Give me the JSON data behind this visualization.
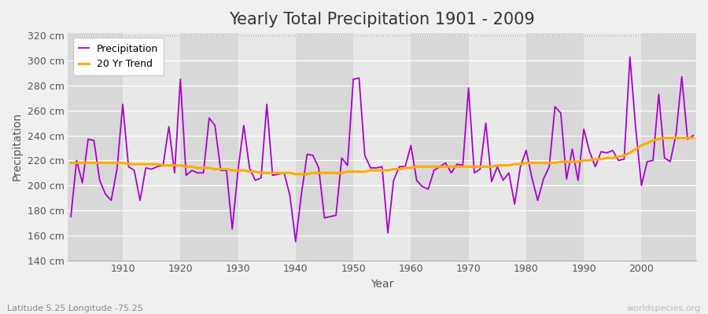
{
  "title": "Yearly Total Precipitation 1901 - 2009",
  "xlabel": "Year",
  "ylabel": "Precipitation",
  "subtitle": "Latitude 5.25 Longitude -75.25",
  "watermark": "worldspecies.org",
  "years": [
    1901,
    1902,
    1903,
    1904,
    1905,
    1906,
    1907,
    1908,
    1909,
    1910,
    1911,
    1912,
    1913,
    1914,
    1915,
    1916,
    1917,
    1918,
    1919,
    1920,
    1921,
    1922,
    1923,
    1924,
    1925,
    1926,
    1927,
    1928,
    1929,
    1930,
    1931,
    1932,
    1933,
    1934,
    1935,
    1936,
    1937,
    1938,
    1939,
    1940,
    1941,
    1942,
    1943,
    1944,
    1945,
    1946,
    1947,
    1948,
    1949,
    1950,
    1951,
    1952,
    1953,
    1954,
    1955,
    1956,
    1957,
    1958,
    1959,
    1960,
    1961,
    1962,
    1963,
    1964,
    1965,
    1966,
    1967,
    1968,
    1969,
    1970,
    1971,
    1972,
    1973,
    1974,
    1975,
    1976,
    1977,
    1978,
    1979,
    1980,
    1981,
    1982,
    1983,
    1984,
    1985,
    1986,
    1987,
    1988,
    1989,
    1990,
    1991,
    1992,
    1993,
    1994,
    1995,
    1996,
    1997,
    1998,
    1999,
    2000,
    2001,
    2002,
    2003,
    2004,
    2005,
    2006,
    2007,
    2008,
    2009
  ],
  "precipitation": [
    175,
    220,
    202,
    237,
    236,
    204,
    193,
    188,
    213,
    265,
    215,
    212,
    188,
    214,
    213,
    215,
    216,
    247,
    210,
    285,
    208,
    212,
    210,
    210,
    254,
    248,
    212,
    212,
    165,
    212,
    248,
    214,
    204,
    206,
    265,
    208,
    209,
    210,
    192,
    155,
    193,
    225,
    224,
    214,
    174,
    175,
    176,
    222,
    216,
    285,
    286,
    224,
    214,
    214,
    215,
    162,
    204,
    215,
    215,
    232,
    204,
    199,
    197,
    212,
    215,
    218,
    210,
    217,
    216,
    278,
    210,
    213,
    250,
    203,
    215,
    204,
    210,
    185,
    215,
    228,
    206,
    188,
    205,
    215,
    263,
    258,
    205,
    229,
    204,
    245,
    227,
    215,
    227,
    226,
    228,
    220,
    221,
    303,
    246,
    200,
    219,
    220,
    273,
    222,
    219,
    241,
    287,
    237,
    240
  ],
  "trend": [
    218,
    218,
    218,
    218,
    218,
    218,
    218,
    218,
    218,
    218,
    217,
    217,
    217,
    217,
    217,
    217,
    216,
    216,
    216,
    216,
    215,
    215,
    214,
    214,
    214,
    213,
    213,
    213,
    212,
    212,
    212,
    211,
    211,
    210,
    210,
    210,
    210,
    210,
    210,
    209,
    209,
    209,
    210,
    210,
    210,
    210,
    210,
    210,
    211,
    211,
    211,
    211,
    212,
    212,
    212,
    212,
    213,
    213,
    214,
    214,
    215,
    215,
    215,
    215,
    215,
    215,
    215,
    215,
    215,
    215,
    215,
    215,
    215,
    215,
    216,
    216,
    216,
    217,
    217,
    218,
    218,
    218,
    218,
    218,
    218,
    219,
    219,
    219,
    219,
    220,
    220,
    221,
    221,
    222,
    222,
    223,
    224,
    226,
    229,
    232,
    234,
    236,
    237,
    238,
    238,
    238,
    238,
    238,
    238
  ],
  "precip_color": "#aa00cc",
  "trend_color": "#ffaa00",
  "bg_color": "#f0f0f0",
  "col_band_light": "#e8e8e8",
  "col_band_dark": "#d8d8d8",
  "ylim": [
    140,
    322
  ],
  "yticks": [
    140,
    160,
    180,
    200,
    220,
    240,
    260,
    280,
    300,
    320
  ],
  "ytick_labels": [
    "140 cm",
    "160 cm",
    "180 cm",
    "200 cm",
    "220 cm",
    "240 cm",
    "260 cm",
    "280 cm",
    "300 cm",
    "320 cm"
  ],
  "xticks": [
    1910,
    1920,
    1930,
    1940,
    1950,
    1960,
    1970,
    1980,
    1990,
    2000
  ],
  "title_fontsize": 15,
  "axis_fontsize": 9,
  "legend_fontsize": 9,
  "linewidth_precip": 1.3,
  "linewidth_trend": 2.2
}
